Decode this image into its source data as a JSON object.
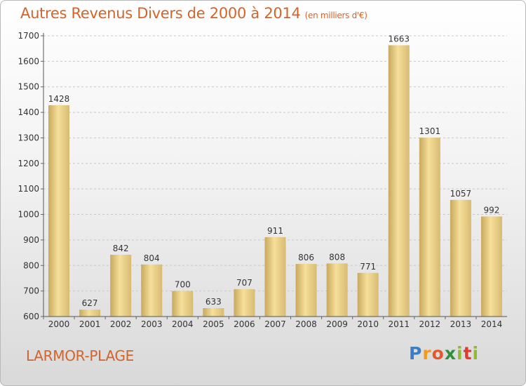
{
  "title": "Autres Revenus Divers de 2000 à 2014",
  "unit_note": "(en milliers d'€)",
  "place": "LARMOR-PLAGE",
  "logo": {
    "p": "P",
    "r": "r",
    "o": "o",
    "x": "x",
    "i": "i",
    "t": "t",
    "i2": "i"
  },
  "colors": {
    "title": "#d4632a",
    "bar_light": "#f5df9a",
    "bar_dark": "#c8a85e",
    "grid": "#c8c8c8"
  },
  "chart_data": {
    "type": "bar",
    "title": "Autres Revenus Divers de 2000 à 2014",
    "xlabel": "",
    "ylabel": "",
    "categories": [
      "2000",
      "2001",
      "2002",
      "2003",
      "2004",
      "2005",
      "2006",
      "2007",
      "2008",
      "2009",
      "2010",
      "2011",
      "2012",
      "2013",
      "2014"
    ],
    "values": [
      1428,
      627,
      842,
      804,
      700,
      633,
      707,
      911,
      806,
      808,
      771,
      1663,
      1301,
      1057,
      992
    ],
    "ylim": [
      600,
      1700
    ],
    "yticks": [
      600,
      700,
      800,
      900,
      1000,
      1100,
      1200,
      1300,
      1400,
      1500,
      1600,
      1700
    ],
    "grid": true
  }
}
